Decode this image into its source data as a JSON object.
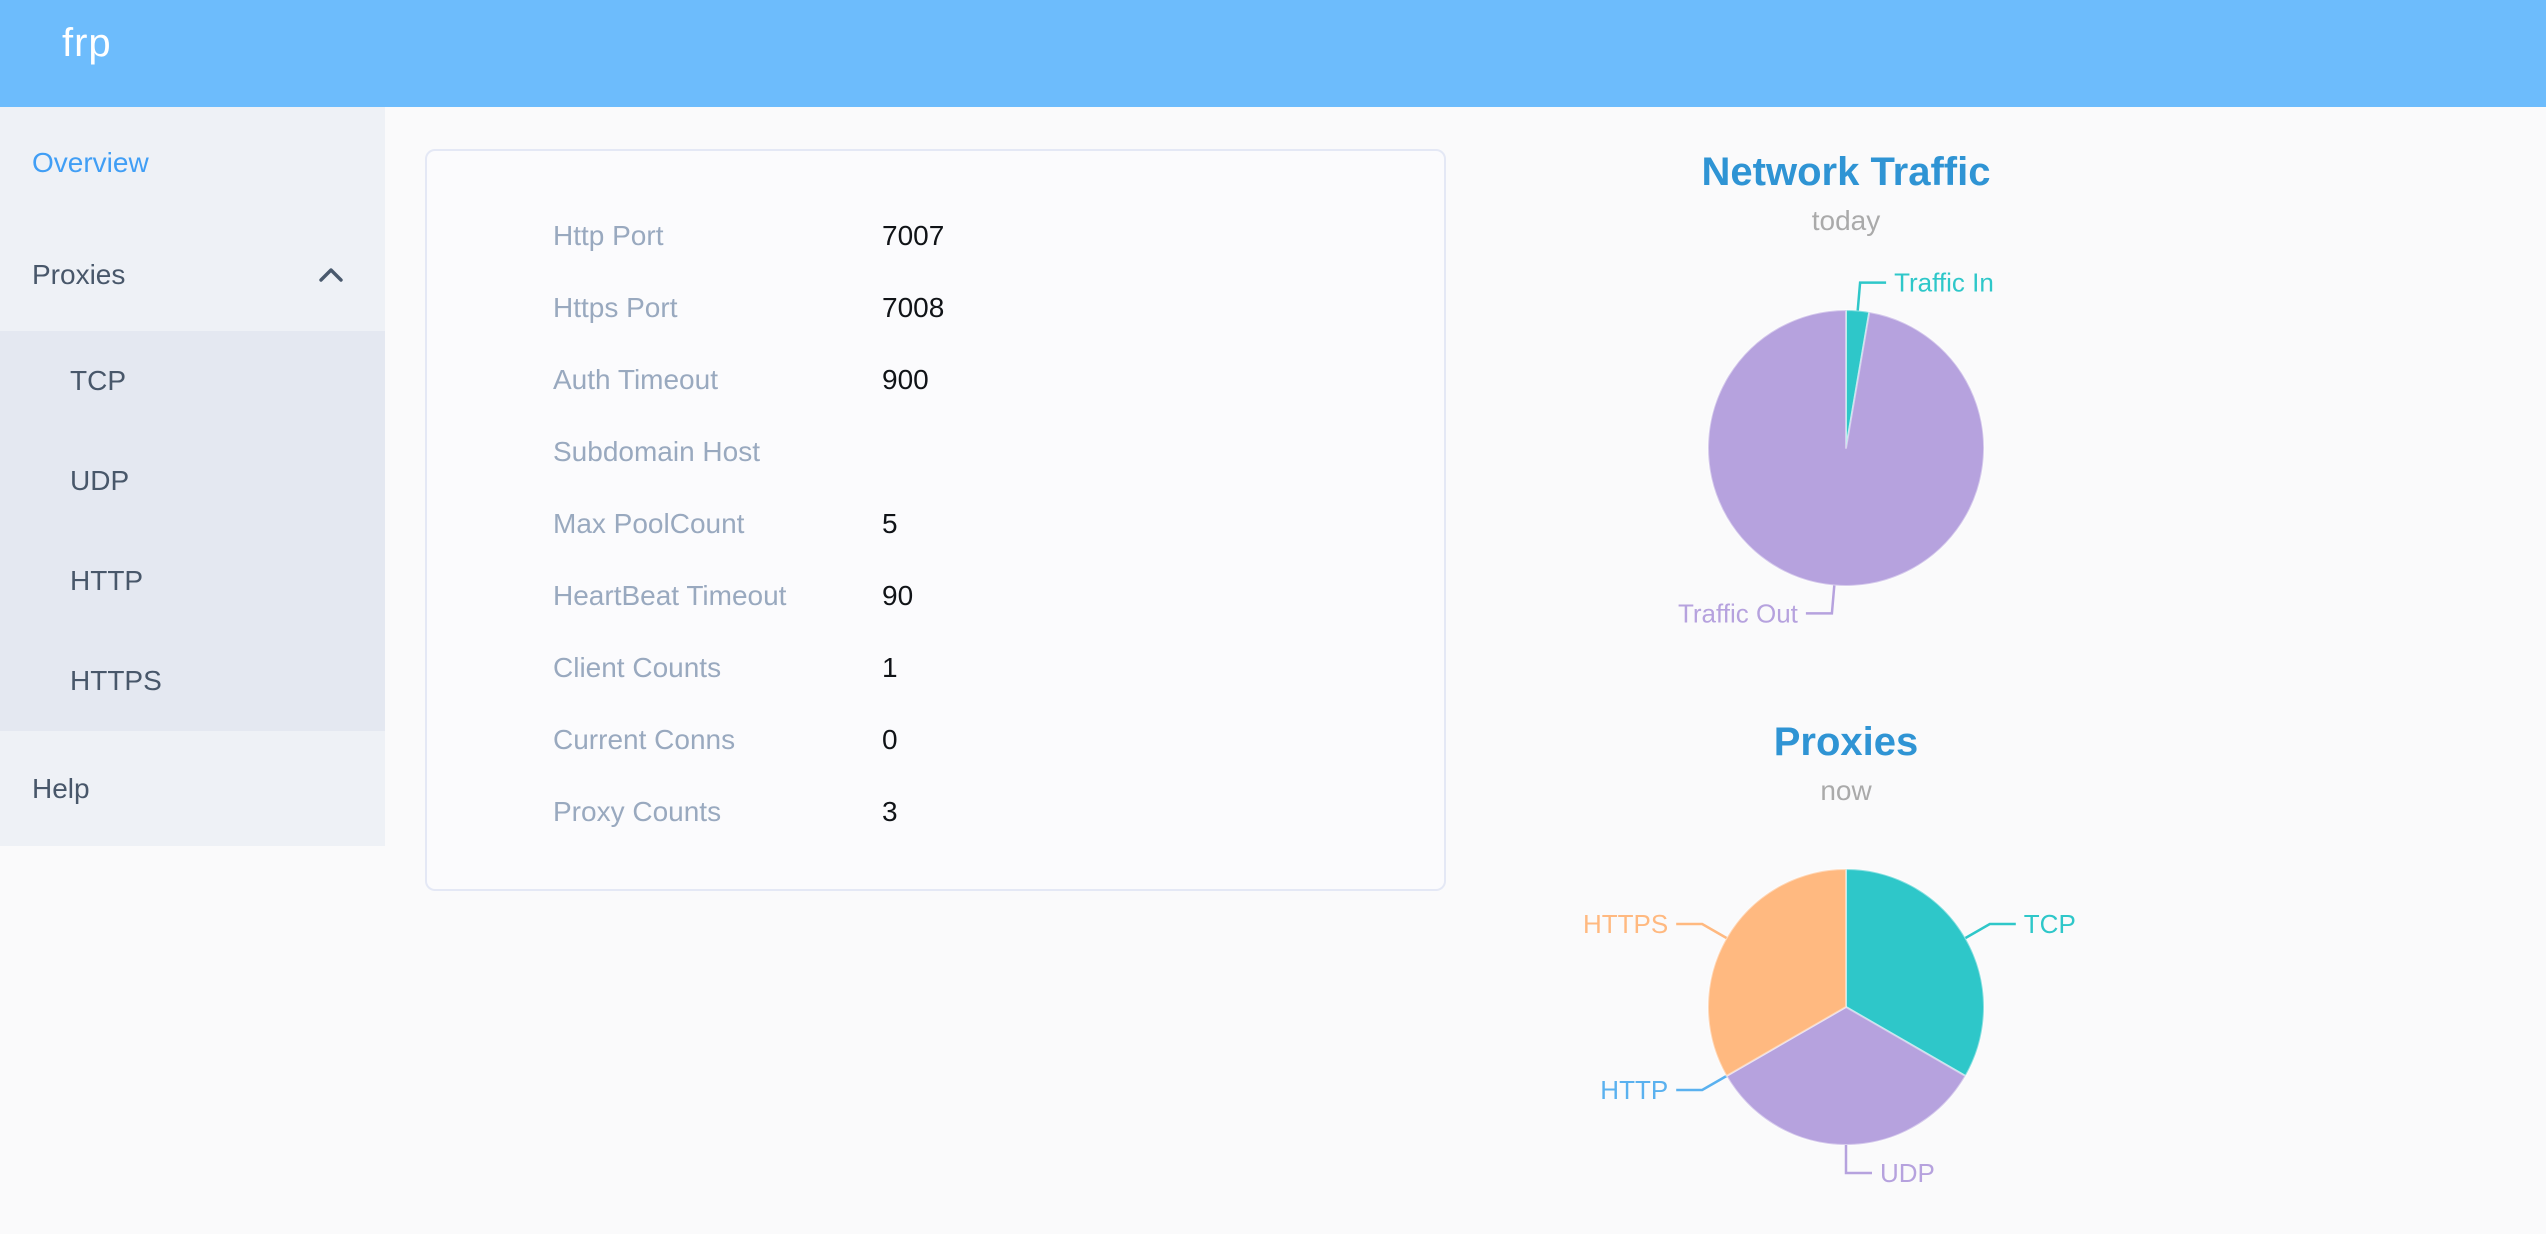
{
  "header": {
    "logo": "frp"
  },
  "sidebar": {
    "items": [
      {
        "label": "Overview",
        "active": true
      },
      {
        "label": "Proxies",
        "expanded": true,
        "children": [
          {
            "label": "TCP"
          },
          {
            "label": "UDP"
          },
          {
            "label": "HTTP"
          },
          {
            "label": "HTTPS"
          }
        ]
      },
      {
        "label": "Help"
      }
    ]
  },
  "server_info": {
    "rows": [
      {
        "label": "Http Port",
        "value": "7007"
      },
      {
        "label": "Https Port",
        "value": "7008"
      },
      {
        "label": "Auth Timeout",
        "value": "900"
      },
      {
        "label": "Subdomain Host",
        "value": ""
      },
      {
        "label": "Max PoolCount",
        "value": "5"
      },
      {
        "label": "HeartBeat Timeout",
        "value": "90"
      },
      {
        "label": "Client Counts",
        "value": "1"
      },
      {
        "label": "Current Conns",
        "value": "0"
      },
      {
        "label": "Proxy Counts",
        "value": "3"
      }
    ]
  },
  "chart_data": [
    {
      "type": "pie",
      "title": "Network Traffic",
      "subtitle": "today",
      "legend_position": "none",
      "labels": "outside",
      "note": "no numeric values shown; slice shares estimated from arc angles",
      "series": [
        {
          "name": "Traffic In",
          "value": 2.7,
          "color": "#2ec7c9"
        },
        {
          "name": "Traffic Out",
          "value": 97.3,
          "color": "#b6a2de"
        }
      ]
    },
    {
      "type": "pie",
      "title": "Proxies",
      "subtitle": "now",
      "legend_position": "none",
      "labels": "outside",
      "note": "proxy counts by type; HTTP slice has zero width",
      "series": [
        {
          "name": "TCP",
          "value": 1,
          "color": "#2ec7c9"
        },
        {
          "name": "UDP",
          "value": 1,
          "color": "#b6a2de"
        },
        {
          "name": "HTTP",
          "value": 0,
          "color": "#5ab1ef"
        },
        {
          "name": "HTTPS",
          "value": 1,
          "color": "#ffb980"
        }
      ]
    }
  ]
}
